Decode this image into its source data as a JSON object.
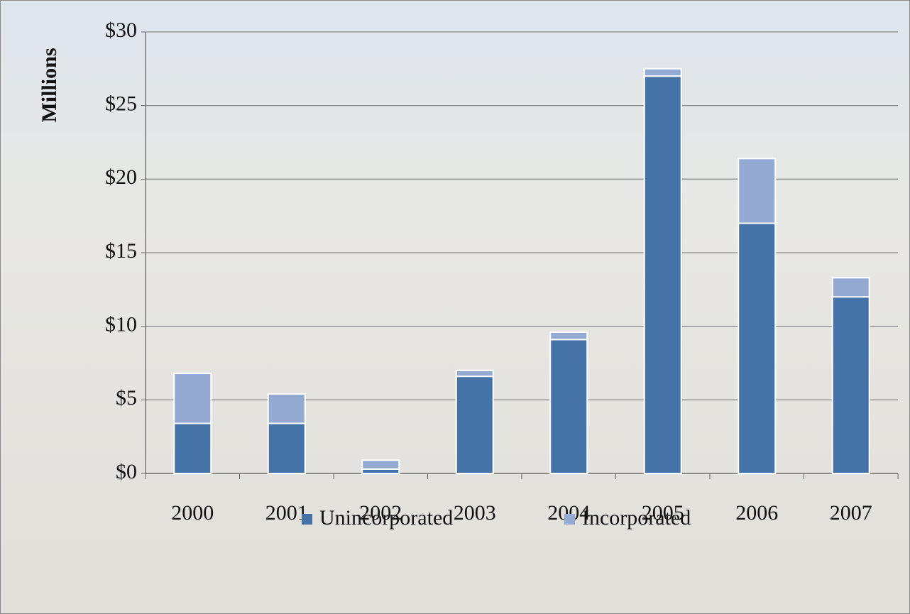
{
  "chart_data": {
    "type": "stacked-bar",
    "y_label": "Millions",
    "categories": [
      "2000",
      "2001",
      "2002",
      "2003",
      "2004",
      "2005",
      "2006",
      "2007"
    ],
    "series": [
      {
        "name": "Unincorporated",
        "color": "#4572a7",
        "values": [
          3.4,
          3.4,
          0.3,
          6.6,
          9.1,
          27.0,
          17.0,
          12.0
        ]
      },
      {
        "name": "Incorporated",
        "color": "#94aad3",
        "values": [
          3.4,
          2.0,
          0.6,
          0.4,
          0.5,
          0.5,
          4.4,
          1.3
        ]
      }
    ],
    "ylim": [
      0,
      30
    ],
    "yticks": [
      {
        "value": 0,
        "label": "$0"
      },
      {
        "value": 5,
        "label": "$5"
      },
      {
        "value": 10,
        "label": "$10"
      },
      {
        "value": 15,
        "label": "$15"
      },
      {
        "value": 20,
        "label": "$20"
      },
      {
        "value": 25,
        "label": "$25"
      },
      {
        "value": 30,
        "label": "$30"
      }
    ],
    "grid": true,
    "legend": "bottom"
  }
}
